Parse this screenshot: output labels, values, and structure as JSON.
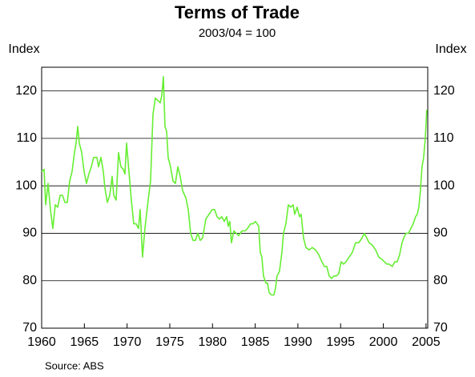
{
  "chart_data": {
    "type": "line",
    "title": "Terms of Trade",
    "subtitle": "2003/04 = 100",
    "y_label": "Index",
    "y2_label": "Index",
    "source": "Source: ABS",
    "xlim": [
      1960,
      2005.2
    ],
    "xticks": [
      1960,
      1965,
      1970,
      1975,
      1980,
      1985,
      1990,
      1995,
      2000,
      2005
    ],
    "ylim": [
      70,
      125
    ],
    "yticks": [
      70,
      80,
      90,
      100,
      110,
      120
    ],
    "grid": true,
    "x": [
      1960.0,
      1960.28,
      1960.47,
      1960.75,
      1961.03,
      1961.31,
      1961.59,
      1961.88,
      1962.16,
      1962.44,
      1962.72,
      1963.0,
      1963.28,
      1963.56,
      1963.84,
      1964.03,
      1964.22,
      1964.41,
      1964.69,
      1964.97,
      1965.25,
      1965.53,
      1965.81,
      1966.09,
      1966.47,
      1966.66,
      1966.94,
      1967.22,
      1967.41,
      1967.69,
      1967.97,
      1968.25,
      1968.44,
      1968.72,
      1969.0,
      1969.28,
      1969.56,
      1969.75,
      1969.94,
      1970.22,
      1970.5,
      1970.78,
      1971.06,
      1971.34,
      1971.53,
      1971.81,
      1972.09,
      1972.47,
      1972.75,
      1973.03,
      1973.31,
      1973.59,
      1973.88,
      1974.06,
      1974.25,
      1974.44,
      1974.63,
      1974.81,
      1975.09,
      1975.38,
      1975.66,
      1975.94,
      1976.22,
      1976.5,
      1976.88,
      1977.16,
      1977.44,
      1977.72,
      1978.0,
      1978.28,
      1978.56,
      1978.84,
      1979.22,
      1979.59,
      1979.97,
      1980.25,
      1980.53,
      1980.81,
      1981.09,
      1981.38,
      1981.66,
      1981.84,
      1982.03,
      1982.22,
      1982.5,
      1982.78,
      1983.06,
      1983.44,
      1983.81,
      1984.09,
      1984.47,
      1984.75,
      1985.03,
      1985.22,
      1985.41,
      1985.59,
      1985.78,
      1985.97,
      1986.25,
      1986.44,
      1986.63,
      1986.91,
      1987.19,
      1987.38,
      1987.56,
      1987.84,
      1988.13,
      1988.31,
      1988.59,
      1988.88,
      1989.16,
      1989.44,
      1989.63,
      1989.91,
      1990.19,
      1990.38,
      1990.66,
      1990.94,
      1991.31,
      1991.69,
      1992.06,
      1992.44,
      1992.81,
      1993.09,
      1993.38,
      1993.66,
      1993.94,
      1994.22,
      1994.5,
      1994.78,
      1995.06,
      1995.34,
      1995.63,
      1996.0,
      1996.38,
      1996.75,
      1997.13,
      1997.5,
      1997.78,
      1998.06,
      1998.34,
      1998.72,
      1999.09,
      1999.47,
      1999.84,
      2000.13,
      2000.41,
      2000.69,
      2001.06,
      2001.34,
      2001.63,
      2001.91,
      2002.19,
      2002.38,
      2002.66,
      2002.94,
      2003.22,
      2003.5,
      2003.78,
      2003.97,
      2004.16,
      2004.34,
      2004.53,
      2004.72,
      2004.91,
      2005.0,
      2005.09
    ],
    "series": [
      {
        "name": "Terms of Trade",
        "color": "#66ee33",
        "values": [
          103,
          103.5,
          96,
          100.5,
          95,
          91,
          96,
          95.5,
          98,
          98,
          96.5,
          96.5,
          101,
          103,
          107,
          109,
          112.5,
          109,
          107,
          103,
          100.5,
          102.5,
          104,
          106,
          106,
          104,
          106,
          103,
          99.5,
          96.5,
          98,
          102,
          98,
          97,
          107,
          104,
          103.5,
          102.5,
          109,
          103,
          97,
          92,
          92,
          91,
          95,
          85,
          91,
          97,
          101,
          115,
          118.5,
          118,
          117.5,
          119,
          123,
          112.5,
          111.5,
          106,
          104,
          101,
          100.5,
          104,
          102,
          99,
          97.5,
          95,
          90,
          88.5,
          88.5,
          90,
          88.5,
          89,
          93,
          94,
          95,
          95,
          93.5,
          93,
          93.5,
          92.5,
          93.5,
          91.5,
          92.5,
          88,
          90.5,
          90,
          89.5,
          90.5,
          90.5,
          91,
          92,
          92,
          92.5,
          92,
          91.5,
          86,
          85,
          81,
          79.5,
          79.5,
          77.5,
          77,
          77,
          78.5,
          81,
          82,
          86,
          90,
          92,
          96,
          95.5,
          96,
          94,
          95.5,
          93.5,
          94,
          89,
          87,
          86.5,
          87,
          86.5,
          85.5,
          84,
          83,
          83,
          81,
          80.5,
          81,
          81,
          81.5,
          84,
          83.5,
          84,
          85,
          86,
          88,
          88,
          89,
          90,
          89,
          88,
          87.5,
          86.5,
          85,
          84.5,
          84,
          83.5,
          83.5,
          83,
          84,
          84,
          85.5,
          88,
          89,
          90,
          90,
          91,
          92,
          93.5,
          94,
          95.5,
          99,
          104,
          106,
          110,
          113,
          116
        ]
      }
    ]
  }
}
